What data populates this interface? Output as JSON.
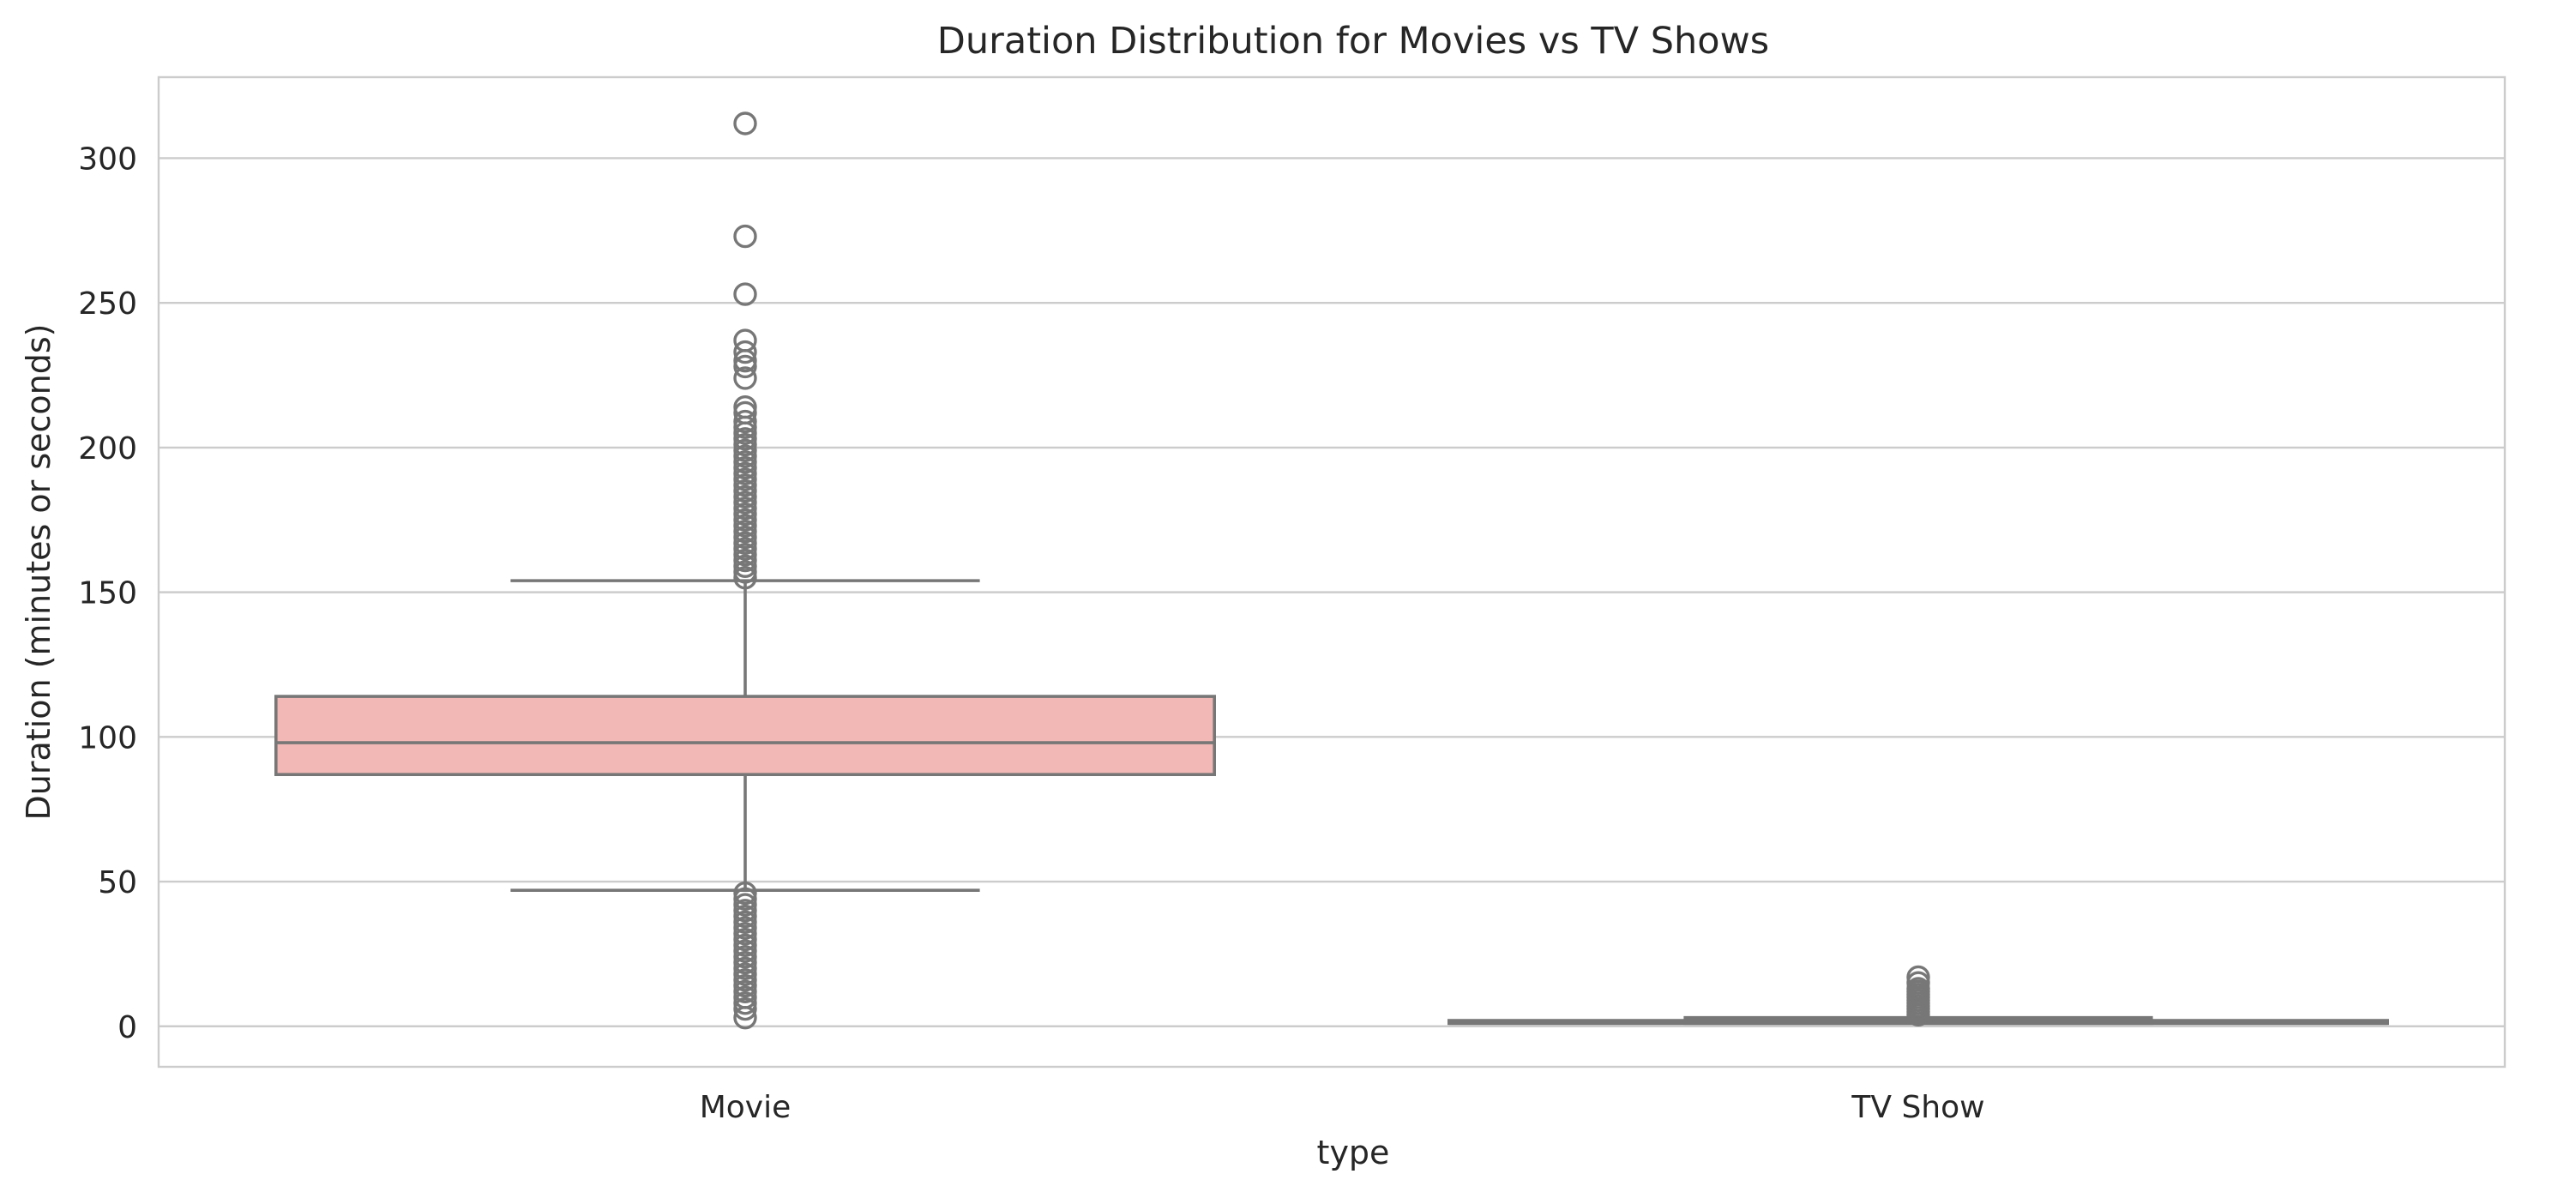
{
  "chart_data": {
    "type": "box",
    "title": "Duration Distribution for Movies vs TV Shows",
    "xlabel": "type",
    "ylabel": "Duration (minutes or seconds)",
    "ylim": [
      -14,
      328
    ],
    "yticks": [
      0,
      50,
      100,
      150,
      200,
      250,
      300
    ],
    "grid": true,
    "categories": [
      "Movie",
      "TV Show"
    ],
    "boxes": [
      {
        "category": "Movie",
        "color": "#f2b8b5",
        "whisker_low": 47,
        "q1": 87,
        "median": 98,
        "q3": 114,
        "whisker_high": 154,
        "outliers": [
          312,
          273,
          253,
          237,
          233,
          230,
          228,
          224,
          214,
          212,
          209,
          207,
          205,
          203,
          201,
          199,
          197,
          195,
          193,
          191,
          189,
          187,
          185,
          183,
          181,
          179,
          177,
          175,
          173,
          171,
          169,
          167,
          165,
          163,
          161,
          159,
          157,
          155,
          46,
          44,
          42,
          40,
          38,
          36,
          34,
          32,
          30,
          28,
          26,
          24,
          22,
          20,
          18,
          16,
          14,
          12,
          10,
          8,
          6,
          3
        ]
      },
      {
        "category": "TV Show",
        "color": "#f2b8b5",
        "whisker_low": 1,
        "q1": 1,
        "median": 1,
        "q3": 2,
        "whisker_high": 3,
        "outliers": [
          4,
          5,
          6,
          7,
          8,
          9,
          10,
          11,
          12,
          13,
          15,
          17
        ]
      }
    ]
  }
}
